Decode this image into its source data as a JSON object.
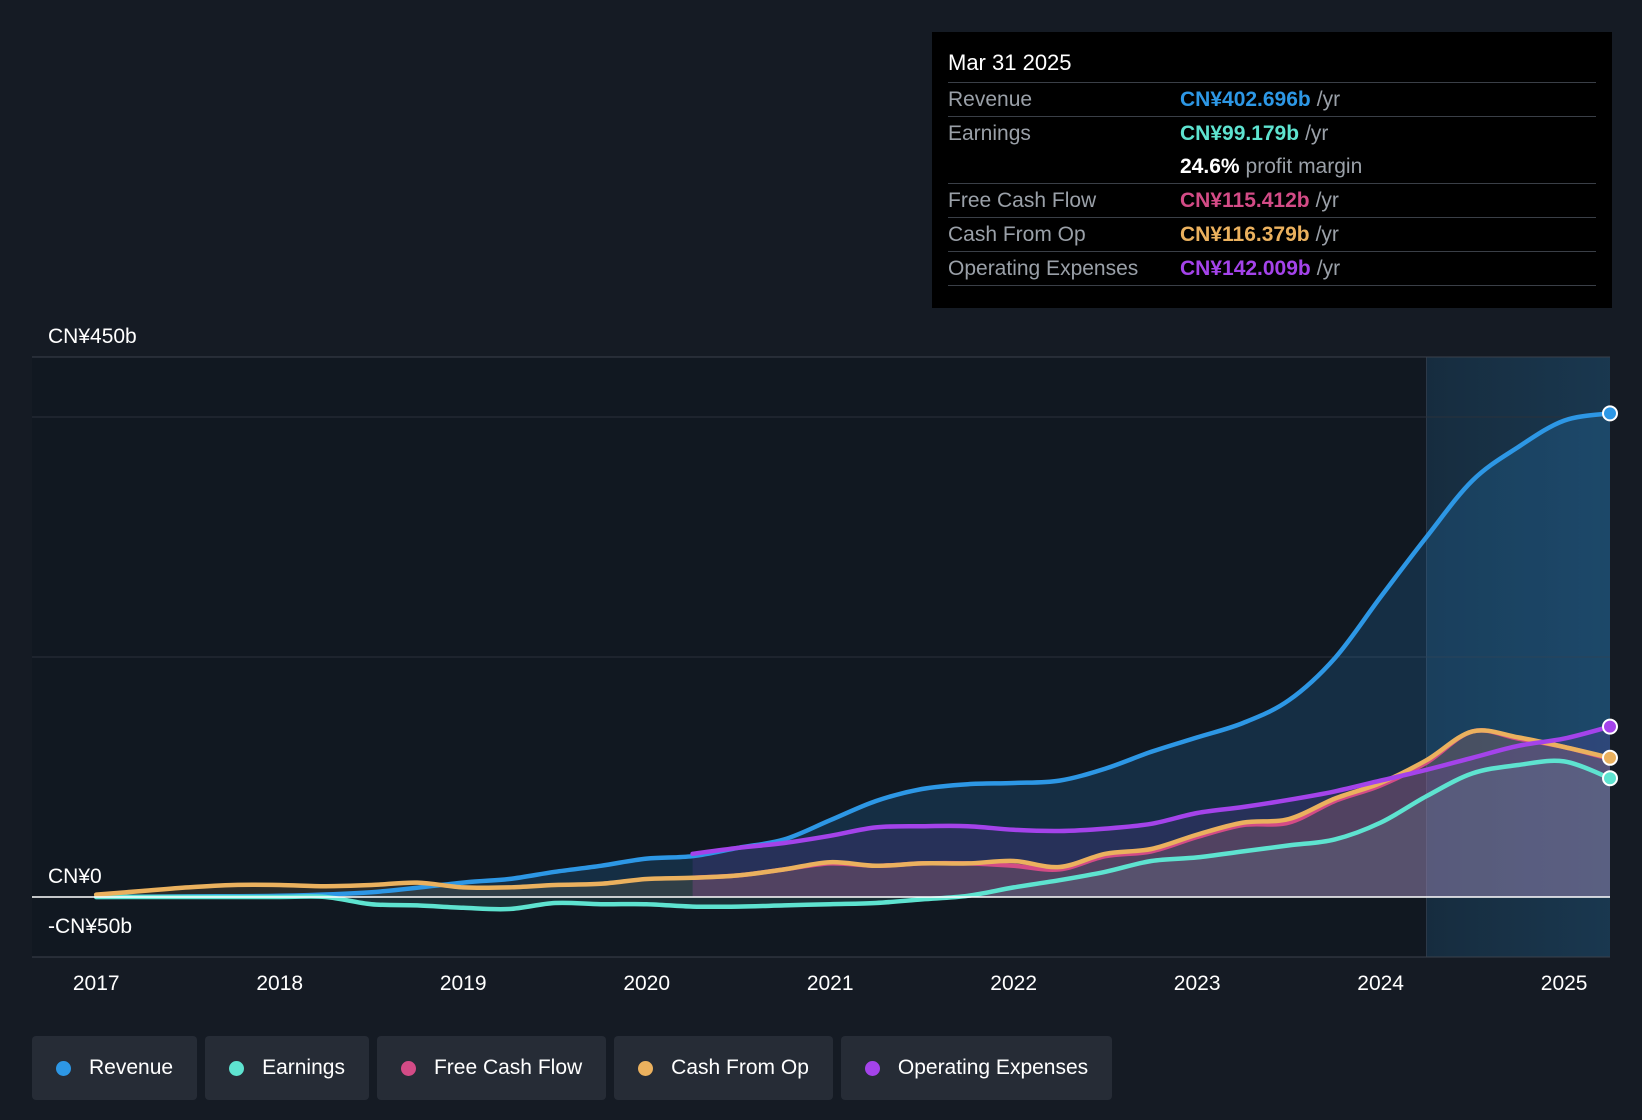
{
  "tooltip": {
    "date": "Mar 31 2025",
    "rows": [
      {
        "label": "Revenue",
        "value": "CN¥402.696b",
        "unit": "/yr",
        "color": "#2d97e5"
      },
      {
        "label": "Earnings",
        "value": "CN¥99.179b",
        "unit": "/yr",
        "color": "#5ee3d0"
      },
      {
        "label": "",
        "value": "24.6%",
        "unit": "profit margin",
        "color": "#ffffff"
      },
      {
        "label": "Free Cash Flow",
        "value": "CN¥115.412b",
        "unit": "/yr",
        "color": "#d34b86"
      },
      {
        "label": "Cash From Op",
        "value": "CN¥116.379b",
        "unit": "/yr",
        "color": "#ebb15e"
      },
      {
        "label": "Operating Expenses",
        "value": "CN¥142.009b",
        "unit": "/yr",
        "color": "#a443ea"
      }
    ]
  },
  "legend": [
    {
      "label": "Revenue",
      "color": "#2d97e5"
    },
    {
      "label": "Earnings",
      "color": "#5ee3d0"
    },
    {
      "label": "Free Cash Flow",
      "color": "#d34b86"
    },
    {
      "label": "Cash From Op",
      "color": "#ebb15e"
    },
    {
      "label": "Operating Expenses",
      "color": "#a443ea"
    }
  ],
  "chart_data": {
    "type": "line",
    "y_axis_labels": [
      {
        "label": "CN¥450b",
        "value": 450
      },
      {
        "label": "CN¥0",
        "value": 0
      },
      {
        "label": "-CN¥50b",
        "value": -50
      }
    ],
    "ylim": [
      -50,
      450
    ],
    "xlim": [
      2016.65,
      2025.25
    ],
    "x_ticks": [
      "2017",
      "2018",
      "2019",
      "2020",
      "2021",
      "2022",
      "2023",
      "2024",
      "2025"
    ],
    "forecast_start": 2024.25,
    "series": [
      {
        "name": "Revenue",
        "color": "#2d97e5",
        "fill": true,
        "points": [
          [
            2017,
            0
          ],
          [
            2017.5,
            0.5
          ],
          [
            2018,
            1
          ],
          [
            2018.5,
            4
          ],
          [
            2019,
            12
          ],
          [
            2019.25,
            15
          ],
          [
            2019.5,
            21
          ],
          [
            2019.75,
            26
          ],
          [
            2020,
            32
          ],
          [
            2020.25,
            34
          ],
          [
            2020.5,
            41
          ],
          [
            2020.75,
            48
          ],
          [
            2021,
            64
          ],
          [
            2021.25,
            80
          ],
          [
            2021.5,
            90
          ],
          [
            2021.75,
            94
          ],
          [
            2022,
            95
          ],
          [
            2022.25,
            97
          ],
          [
            2022.5,
            107
          ],
          [
            2022.75,
            121
          ],
          [
            2023,
            133
          ],
          [
            2023.25,
            145
          ],
          [
            2023.5,
            164
          ],
          [
            2023.75,
            199
          ],
          [
            2024,
            250
          ],
          [
            2024.25,
            300
          ],
          [
            2024.5,
            347
          ],
          [
            2024.75,
            375
          ],
          [
            2025,
            397
          ],
          [
            2025.25,
            403
          ]
        ]
      },
      {
        "name": "Earnings",
        "color": "#5ee3d0",
        "fill": true,
        "points": [
          [
            2017,
            0
          ],
          [
            2017.5,
            0
          ],
          [
            2018,
            0
          ],
          [
            2018.25,
            0
          ],
          [
            2018.5,
            -6
          ],
          [
            2018.75,
            -7
          ],
          [
            2019,
            -9
          ],
          [
            2019.25,
            -10
          ],
          [
            2019.5,
            -5
          ],
          [
            2019.75,
            -6
          ],
          [
            2020,
            -6
          ],
          [
            2020.25,
            -8
          ],
          [
            2020.5,
            -8
          ],
          [
            2020.75,
            -7
          ],
          [
            2021,
            -6
          ],
          [
            2021.25,
            -5
          ],
          [
            2021.5,
            -2
          ],
          [
            2021.75,
            1
          ],
          [
            2022,
            8
          ],
          [
            2022.25,
            14
          ],
          [
            2022.5,
            21
          ],
          [
            2022.75,
            30
          ],
          [
            2023,
            33
          ],
          [
            2023.25,
            38
          ],
          [
            2023.5,
            43
          ],
          [
            2023.75,
            48
          ],
          [
            2024,
            62
          ],
          [
            2024.25,
            84
          ],
          [
            2024.5,
            103
          ],
          [
            2024.75,
            110
          ],
          [
            2025,
            113
          ],
          [
            2025.25,
            99
          ]
        ]
      },
      {
        "name": "Free Cash Flow",
        "color": "#d34b86",
        "fill": true,
        "points": [
          [
            2020.25,
            16
          ],
          [
            2020.5,
            18
          ],
          [
            2020.75,
            23
          ],
          [
            2021,
            28
          ],
          [
            2021.25,
            26
          ],
          [
            2021.5,
            28
          ],
          [
            2021.75,
            28
          ],
          [
            2022,
            26
          ],
          [
            2022.25,
            23
          ],
          [
            2022.5,
            34
          ],
          [
            2022.75,
            38
          ],
          [
            2023,
            50
          ],
          [
            2023.25,
            60
          ],
          [
            2023.5,
            62
          ],
          [
            2023.75,
            80
          ],
          [
            2024,
            93
          ],
          [
            2024.25,
            112
          ],
          [
            2024.5,
            138
          ],
          [
            2024.75,
            132
          ],
          [
            2025,
            125
          ],
          [
            2025.25,
            115
          ]
        ]
      },
      {
        "name": "Cash From Op",
        "color": "#ebb15e",
        "fill": true,
        "points": [
          [
            2017,
            2
          ],
          [
            2017.25,
            5
          ],
          [
            2017.5,
            8
          ],
          [
            2017.75,
            10
          ],
          [
            2018,
            10
          ],
          [
            2018.25,
            9
          ],
          [
            2018.5,
            10
          ],
          [
            2018.75,
            12
          ],
          [
            2019,
            8
          ],
          [
            2019.25,
            8
          ],
          [
            2019.5,
            10
          ],
          [
            2019.75,
            11
          ],
          [
            2020,
            15
          ],
          [
            2020.25,
            16
          ],
          [
            2020.5,
            18
          ],
          [
            2020.75,
            23
          ],
          [
            2021,
            29
          ],
          [
            2021.25,
            26
          ],
          [
            2021.5,
            28
          ],
          [
            2021.75,
            28
          ],
          [
            2022,
            30
          ],
          [
            2022.25,
            25
          ],
          [
            2022.5,
            36
          ],
          [
            2022.75,
            40
          ],
          [
            2023,
            52
          ],
          [
            2023.25,
            62
          ],
          [
            2023.5,
            65
          ],
          [
            2023.75,
            82
          ],
          [
            2024,
            95
          ],
          [
            2024.25,
            114
          ],
          [
            2024.5,
            138
          ],
          [
            2024.75,
            133
          ],
          [
            2025,
            125
          ],
          [
            2025.25,
            116
          ]
        ]
      },
      {
        "name": "Operating Expenses",
        "color": "#a443ea",
        "fill": true,
        "points": [
          [
            2020.25,
            36
          ],
          [
            2020.5,
            41
          ],
          [
            2020.75,
            45
          ],
          [
            2021,
            51
          ],
          [
            2021.25,
            58
          ],
          [
            2021.5,
            59
          ],
          [
            2021.75,
            59
          ],
          [
            2022,
            56
          ],
          [
            2022.25,
            55
          ],
          [
            2022.5,
            57
          ],
          [
            2022.75,
            61
          ],
          [
            2023,
            70
          ],
          [
            2023.25,
            75
          ],
          [
            2023.5,
            81
          ],
          [
            2023.75,
            88
          ],
          [
            2024,
            97
          ],
          [
            2024.25,
            106
          ],
          [
            2024.5,
            116
          ],
          [
            2024.75,
            126
          ],
          [
            2025,
            132
          ],
          [
            2025.25,
            142
          ]
        ]
      }
    ]
  }
}
